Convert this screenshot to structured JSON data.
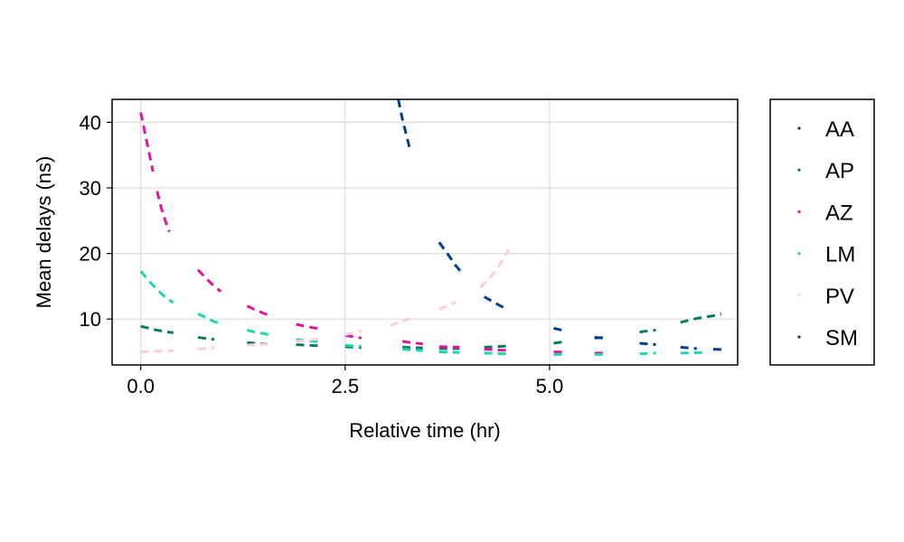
{
  "chart_data": {
    "type": "scatter",
    "title": "",
    "xlabel": "Relative time (hr)",
    "ylabel": "Mean delays (ns)",
    "xlim": [
      -0.35,
      7.3
    ],
    "ylim": [
      3.0,
      43.5
    ],
    "xticks": [
      0.0,
      2.5,
      5.0
    ],
    "xtick_labels": [
      "0.0",
      "2.5",
      "5.0"
    ],
    "yticks": [
      10,
      20,
      30,
      40
    ],
    "ytick_labels": [
      "10",
      "20",
      "30",
      "40"
    ],
    "grid": true,
    "legend_position": "right",
    "series": [
      {
        "name": "AA",
        "color": "#7a0f3b",
        "segments": []
      },
      {
        "name": "AP",
        "color": "#0c7a63",
        "segments": [
          [
            [
              0.0,
              8.9
            ],
            [
              0.1,
              8.6
            ],
            [
              0.2,
              8.3
            ],
            [
              0.3,
              8.1
            ],
            [
              0.4,
              7.9
            ]
          ],
          [
            [
              0.7,
              7.2
            ],
            [
              0.8,
              7.05
            ],
            [
              0.9,
              6.9
            ]
          ],
          [
            [
              1.3,
              6.4
            ],
            [
              1.4,
              6.3
            ],
            [
              1.55,
              6.2
            ]
          ],
          [
            [
              1.9,
              6.1
            ],
            [
              2.05,
              6.0
            ],
            [
              2.2,
              5.9
            ]
          ],
          [
            [
              2.5,
              5.8
            ],
            [
              2.6,
              5.7
            ],
            [
              2.7,
              5.65
            ]
          ],
          [
            [
              3.2,
              5.7
            ],
            [
              3.3,
              5.65
            ],
            [
              3.45,
              5.6
            ]
          ],
          [
            [
              3.65,
              5.5
            ],
            [
              3.75,
              5.5
            ],
            [
              3.9,
              5.5
            ]
          ],
          [
            [
              4.2,
              5.7
            ],
            [
              4.35,
              5.8
            ],
            [
              4.5,
              5.9
            ]
          ],
          [
            [
              5.05,
              6.3
            ],
            [
              5.15,
              6.5
            ]
          ],
          [
            [
              5.55,
              7.1
            ],
            [
              5.65,
              7.2
            ]
          ],
          [
            [
              6.1,
              8.0
            ],
            [
              6.2,
              8.2
            ],
            [
              6.3,
              8.3
            ]
          ],
          [
            [
              6.6,
              9.5
            ],
            [
              6.7,
              9.8
            ],
            [
              6.8,
              10.1
            ],
            [
              6.9,
              10.3
            ],
            [
              7.0,
              10.5
            ],
            [
              7.1,
              10.8
            ]
          ]
        ]
      },
      {
        "name": "AZ",
        "color": "#e5139c",
        "segments": [
          [
            [
              0.0,
              41.5
            ],
            [
              0.05,
              38.5
            ],
            [
              0.1,
              35.5
            ],
            [
              0.15,
              32.5
            ]
          ],
          [
            [
              0.2,
              29.5
            ],
            [
              0.25,
              27.0
            ],
            [
              0.3,
              25.0
            ],
            [
              0.35,
              23.3
            ]
          ],
          [
            [
              0.7,
              17.5
            ],
            [
              0.8,
              16.2
            ],
            [
              0.9,
              15.0
            ],
            [
              0.98,
              14.2
            ]
          ],
          [
            [
              1.3,
              12.0
            ],
            [
              1.4,
              11.4
            ],
            [
              1.5,
              10.9
            ],
            [
              1.58,
              10.5
            ]
          ],
          [
            [
              1.9,
              9.2
            ],
            [
              2.05,
              8.8
            ],
            [
              2.2,
              8.5
            ]
          ],
          [
            [
              2.5,
              7.5
            ],
            [
              2.6,
              7.3
            ],
            [
              2.7,
              7.1
            ]
          ],
          [
            [
              3.2,
              6.6
            ],
            [
              3.3,
              6.4
            ],
            [
              3.45,
              6.2
            ]
          ],
          [
            [
              3.65,
              5.8
            ],
            [
              3.75,
              5.75
            ],
            [
              3.9,
              5.7
            ]
          ],
          [
            [
              4.2,
              5.4
            ],
            [
              4.35,
              5.3
            ],
            [
              4.5,
              5.2
            ]
          ],
          [
            [
              5.05,
              5.0
            ],
            [
              5.15,
              4.95
            ]
          ],
          [
            [
              5.55,
              4.8
            ],
            [
              5.65,
              4.8
            ]
          ]
        ]
      },
      {
        "name": "LM",
        "color": "#1fd6b0",
        "segments": [
          [
            [
              0.0,
              17.3
            ],
            [
              0.1,
              15.8
            ],
            [
              0.2,
              14.5
            ],
            [
              0.3,
              13.3
            ],
            [
              0.4,
              12.5
            ]
          ],
          [
            [
              0.7,
              10.8
            ],
            [
              0.8,
              10.2
            ],
            [
              0.9,
              9.6
            ],
            [
              0.98,
              9.3
            ]
          ],
          [
            [
              1.3,
              8.3
            ],
            [
              1.4,
              8.0
            ],
            [
              1.5,
              7.8
            ],
            [
              1.58,
              7.6
            ]
          ],
          [
            [
              1.9,
              6.9
            ],
            [
              2.05,
              6.7
            ],
            [
              2.2,
              6.5
            ]
          ],
          [
            [
              2.5,
              6.0
            ],
            [
              2.6,
              5.9
            ],
            [
              2.7,
              5.8
            ]
          ],
          [
            [
              3.2,
              5.4
            ],
            [
              3.3,
              5.3
            ],
            [
              3.45,
              5.2
            ]
          ],
          [
            [
              3.65,
              5.0
            ],
            [
              3.75,
              4.95
            ],
            [
              3.9,
              4.9
            ]
          ],
          [
            [
              4.2,
              4.8
            ],
            [
              4.35,
              4.75
            ],
            [
              4.5,
              4.7
            ]
          ],
          [
            [
              5.05,
              4.6
            ],
            [
              5.15,
              4.6
            ]
          ],
          [
            [
              5.55,
              4.6
            ],
            [
              5.65,
              4.6
            ]
          ],
          [
            [
              6.1,
              4.7
            ],
            [
              6.2,
              4.75
            ],
            [
              6.3,
              4.8
            ]
          ],
          [
            [
              6.6,
              4.8
            ],
            [
              6.75,
              4.85
            ],
            [
              6.9,
              4.9
            ]
          ]
        ]
      },
      {
        "name": "PV",
        "color": "#ffccdf",
        "segments": [
          [
            [
              0.0,
              5.0
            ],
            [
              0.1,
              5.05
            ],
            [
              0.2,
              5.1
            ],
            [
              0.3,
              5.15
            ],
            [
              0.4,
              5.2
            ]
          ],
          [
            [
              0.7,
              5.4
            ],
            [
              0.8,
              5.5
            ],
            [
              0.9,
              5.6
            ]
          ],
          [
            [
              1.3,
              6.0
            ],
            [
              1.4,
              6.1
            ],
            [
              1.55,
              6.2
            ]
          ],
          [
            [
              1.9,
              6.6
            ],
            [
              2.05,
              6.8
            ],
            [
              2.2,
              7.0
            ]
          ],
          [
            [
              2.5,
              7.6
            ],
            [
              2.6,
              7.9
            ],
            [
              2.7,
              8.2
            ]
          ],
          [
            [
              3.05,
              9.0
            ],
            [
              3.15,
              9.5
            ],
            [
              3.25,
              9.9
            ],
            [
              3.35,
              10.3
            ]
          ],
          [
            [
              3.65,
              11.5
            ],
            [
              3.75,
              12.0
            ],
            [
              3.85,
              12.6
            ]
          ],
          [
            [
              4.15,
              14.8
            ],
            [
              4.25,
              16.0
            ],
            [
              4.35,
              17.5
            ],
            [
              4.45,
              19.5
            ],
            [
              4.5,
              20.6
            ]
          ]
        ]
      },
      {
        "name": "SM",
        "color": "#003f8a",
        "segments": [
          [
            [
              3.15,
              43.5
            ],
            [
              3.2,
              40.5
            ],
            [
              3.25,
              38.0
            ],
            [
              3.3,
              35.5
            ]
          ],
          [
            [
              3.65,
              21.7
            ],
            [
              3.75,
              20.0
            ],
            [
              3.85,
              18.2
            ],
            [
              3.93,
              17.0
            ]
          ],
          [
            [
              4.2,
              13.4
            ],
            [
              4.3,
              12.7
            ],
            [
              4.4,
              12.0
            ],
            [
              4.48,
              11.5
            ]
          ],
          [
            [
              5.05,
              8.6
            ],
            [
              5.15,
              8.3
            ]
          ],
          [
            [
              5.55,
              7.2
            ],
            [
              5.65,
              7.1
            ]
          ],
          [
            [
              6.1,
              6.3
            ],
            [
              6.2,
              6.2
            ],
            [
              6.3,
              6.1
            ]
          ],
          [
            [
              6.6,
              5.7
            ],
            [
              6.7,
              5.6
            ],
            [
              6.8,
              5.5
            ]
          ],
          [
            [
              7.0,
              5.4
            ],
            [
              7.1,
              5.35
            ]
          ]
        ]
      }
    ]
  }
}
